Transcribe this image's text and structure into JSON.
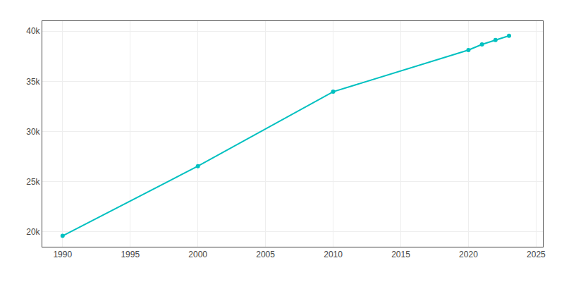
{
  "chart_data": {
    "type": "line",
    "x": [
      1990,
      2000,
      2010,
      2020,
      2021,
      2022,
      2023
    ],
    "values": [
      19587,
      26535,
      33960,
      38119,
      38676,
      39119,
      39545
    ],
    "color": "#00c0c0",
    "marker": "circle",
    "xlim": [
      1988.5,
      2025.5
    ],
    "xticks": [
      1990,
      1995,
      2000,
      2005,
      2010,
      2015,
      2020,
      2025
    ],
    "ylim": [
      18500,
      41000
    ],
    "yticks": [
      {
        "value": 20000,
        "label": "20k"
      },
      {
        "value": 25000,
        "label": "25k"
      },
      {
        "value": 30000,
        "label": "30k"
      },
      {
        "value": 35000,
        "label": "35k"
      },
      {
        "value": 40000,
        "label": "40k"
      }
    ],
    "grid": true
  }
}
